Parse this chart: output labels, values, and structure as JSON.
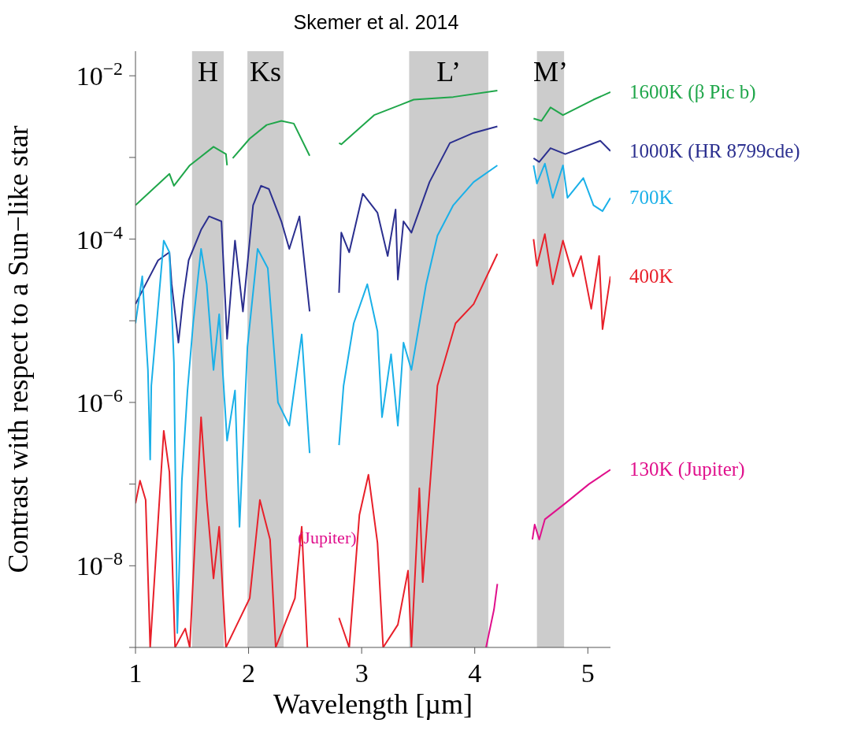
{
  "chart_data": {
    "type": "line",
    "title": "Skemer et al.  2014",
    "xlabel": "Wavelength [µm]",
    "ylabel": "Contrast with respect to a Sun−like star",
    "log": "y",
    "marker": "none",
    "line_style": "solid",
    "xlim": [
      1,
      5.2
    ],
    "xticks": [
      1,
      2,
      3,
      4,
      5
    ],
    "ylim": [
      1e-09,
      0.02
    ],
    "yticks": [
      {
        "value": 1e-09,
        "label": null
      },
      {
        "value": 1e-08,
        "label": "10$^{−8}$"
      },
      {
        "value": 1e-07,
        "label": null
      },
      {
        "value": 1e-06,
        "label": "10$^{−6}$"
      },
      {
        "value": 1e-05,
        "label": null
      },
      {
        "value": 0.0001,
        "label": "10$^{−4}$"
      },
      {
        "value": 0.001,
        "label": null
      },
      {
        "value": 0.01,
        "label": "10$^{−2}$"
      }
    ],
    "bands": [
      {
        "axis": "x",
        "from": 1.5,
        "to": 1.78,
        "label": "H",
        "color": "#cccccc"
      },
      {
        "axis": "x",
        "from": 1.99,
        "to": 2.31,
        "label": "Ks",
        "color": "#cccccc"
      },
      {
        "axis": "x",
        "from": 3.42,
        "to": 4.12,
        "label": "L’",
        "color": "#cccccc"
      },
      {
        "axis": "x",
        "from": 4.55,
        "to": 4.79,
        "label": "M’",
        "color": "#cccccc"
      }
    ],
    "annotations": [
      "(Jupiter)"
    ],
    "series": [
      {
        "name": "1600K (β Pic b)",
        "color": "#1fa64a",
        "x": [
          1.0,
          1.3,
          1.34,
          1.48,
          1.69,
          1.8,
          1.81,
          1.83,
          1.86,
          2.01,
          2.16,
          2.29,
          2.4,
          2.54,
          2.67,
          2.8,
          2.82,
          3.11,
          3.46,
          3.81,
          4.2,
          4.36,
          4.52,
          4.59,
          4.67,
          4.78,
          5.05,
          5.2
        ],
        "values": [
          0.00026,
          0.00063,
          0.00045,
          0.0008,
          0.00135,
          0.0011,
          0.0008,
          null,
          0.00098,
          0.0017,
          0.0025,
          0.0028,
          0.0026,
          0.00105,
          null,
          0.0015,
          0.00145,
          0.0033,
          0.0051,
          0.0055,
          0.0066,
          null,
          0.003,
          0.0028,
          0.0041,
          0.0033,
          0.0051,
          0.0063
        ]
      },
      {
        "name": "1000K (HR 8799cde)",
        "color": "#2b2f8f",
        "x": [
          1.0,
          1.09,
          1.2,
          1.3,
          1.32,
          1.38,
          1.42,
          1.47,
          1.58,
          1.65,
          1.76,
          1.81,
          1.88,
          1.95,
          2.04,
          2.11,
          2.18,
          2.29,
          2.36,
          2.45,
          2.54,
          2.67,
          2.8,
          2.82,
          2.89,
          3.01,
          3.14,
          3.23,
          3.3,
          3.32,
          3.37,
          3.44,
          3.6,
          3.78,
          3.99,
          4.2,
          4.36,
          4.52,
          4.57,
          4.67,
          4.8,
          5.11,
          5.2
        ],
        "values": [
          1.6e-05,
          2.8e-05,
          5.5e-05,
          6.9e-05,
          2.8e-05,
          5.4e-06,
          1.8e-05,
          5.5e-05,
          0.00013,
          0.00019,
          0.000165,
          6e-06,
          9.6e-05,
          1.3e-05,
          0.00026,
          0.00045,
          0.00041,
          0.000165,
          7.6e-05,
          0.00019,
          1.3e-05,
          null,
          2.2e-05,
          0.00012,
          6.9e-05,
          0.00036,
          0.00021,
          6.2e-05,
          0.00023,
          3.2e-05,
          0.000165,
          0.00012,
          0.0005,
          0.0015,
          0.002,
          0.0024,
          null,
          0.00098,
          0.00088,
          0.0013,
          0.0011,
          0.0016,
          0.0012
        ]
      },
      {
        "name": "700K",
        "color": "#1ab0e8",
        "x": [
          1.0,
          1.06,
          1.11,
          1.13,
          1.14,
          1.25,
          1.3,
          1.34,
          1.37,
          1.41,
          1.46,
          1.51,
          1.58,
          1.63,
          1.69,
          1.74,
          1.81,
          1.88,
          1.92,
          1.99,
          2.08,
          2.17,
          2.26,
          2.36,
          2.47,
          2.54,
          2.67,
          2.8,
          2.84,
          2.93,
          3.05,
          3.14,
          3.18,
          3.26,
          3.32,
          3.37,
          3.44,
          3.57,
          3.67,
          3.81,
          3.99,
          4.2,
          4.36,
          4.52,
          4.55,
          4.62,
          4.69,
          4.78,
          4.82,
          4.96,
          5.05,
          5.13,
          5.2
        ],
        "values": [
          9.3e-06,
          3.5e-05,
          2.5e-06,
          2e-07,
          1.6e-06,
          9.6e-05,
          6.9e-05,
          3.1e-06,
          1.5e-09,
          1.1e-07,
          1.4e-06,
          9.3e-06,
          7.6e-05,
          2.8e-05,
          2.5e-06,
          1.2e-05,
          3.4e-07,
          1.4e-06,
          3e-08,
          4.8e-06,
          7.6e-05,
          4.4e-05,
          1e-06,
          5.2e-07,
          6.8e-06,
          2.4e-07,
          null,
          3e-07,
          1.6e-06,
          9.3e-06,
          2.8e-05,
          7.4e-06,
          6.6e-07,
          3.9e-06,
          5.2e-07,
          5.4e-06,
          2.5e-06,
          2.8e-05,
          0.00011,
          0.00026,
          0.0005,
          0.0008,
          null,
          0.0008,
          0.00048,
          0.00084,
          0.00032,
          0.0008,
          0.00032,
          0.00056,
          0.00026,
          0.00022,
          0.00032
        ]
      },
      {
        "name": "400K",
        "color": "#e8202a",
        "x": [
          1.0,
          1.04,
          1.09,
          1.13,
          1.25,
          1.3,
          1.35,
          1.44,
          1.48,
          1.58,
          1.63,
          1.69,
          1.74,
          1.8,
          1.88,
          2.01,
          2.1,
          2.19,
          2.24,
          2.41,
          2.47,
          2.52,
          2.67,
          2.8,
          2.89,
          2.98,
          3.06,
          3.14,
          3.19,
          3.32,
          3.41,
          3.44,
          3.51,
          3.54,
          3.67,
          3.83,
          3.99,
          4.2,
          4.36,
          4.52,
          4.55,
          4.62,
          4.69,
          4.78,
          4.87,
          4.94,
          5.03,
          5.1,
          5.13,
          5.2
        ],
        "values": [
          5.8e-08,
          1.1e-07,
          6.4e-08,
          1e-09,
          4.5e-07,
          1.4e-07,
          1e-09,
          1.7e-09,
          1e-09,
          6.6e-07,
          6.4e-08,
          7e-09,
          3e-08,
          1e-09,
          1.7e-09,
          4e-09,
          6.4e-08,
          2.1e-08,
          1e-09,
          4e-09,
          3e-08,
          1e-09,
          null,
          2.3e-09,
          1e-09,
          4.2e-08,
          1.3e-07,
          1.9e-08,
          1e-09,
          1.9e-09,
          8.7e-09,
          1e-09,
          8.9e-08,
          6.3e-09,
          1.6e-06,
          9.3e-06,
          1.6e-05,
          6.6e-05,
          null,
          0.0001,
          4.7e-05,
          0.000115,
          2.8e-05,
          9.6e-05,
          3.5e-05,
          6.2e-05,
          1.4e-05,
          6.2e-05,
          7.9e-06,
          3.5e-05
        ]
      },
      {
        "name": "130K (Jupiter)",
        "color": "#e0108c",
        "x": [
          4.1,
          4.17,
          4.2,
          4.36,
          4.51,
          4.53,
          4.57,
          4.62,
          4.8,
          5.01,
          5.2
        ],
        "values": [
          1e-09,
          2.9e-09,
          6e-09,
          null,
          2.1e-08,
          3.2e-08,
          2.1e-08,
          3.7e-08,
          5.8e-08,
          1e-07,
          1.5e-07
        ]
      }
    ]
  }
}
